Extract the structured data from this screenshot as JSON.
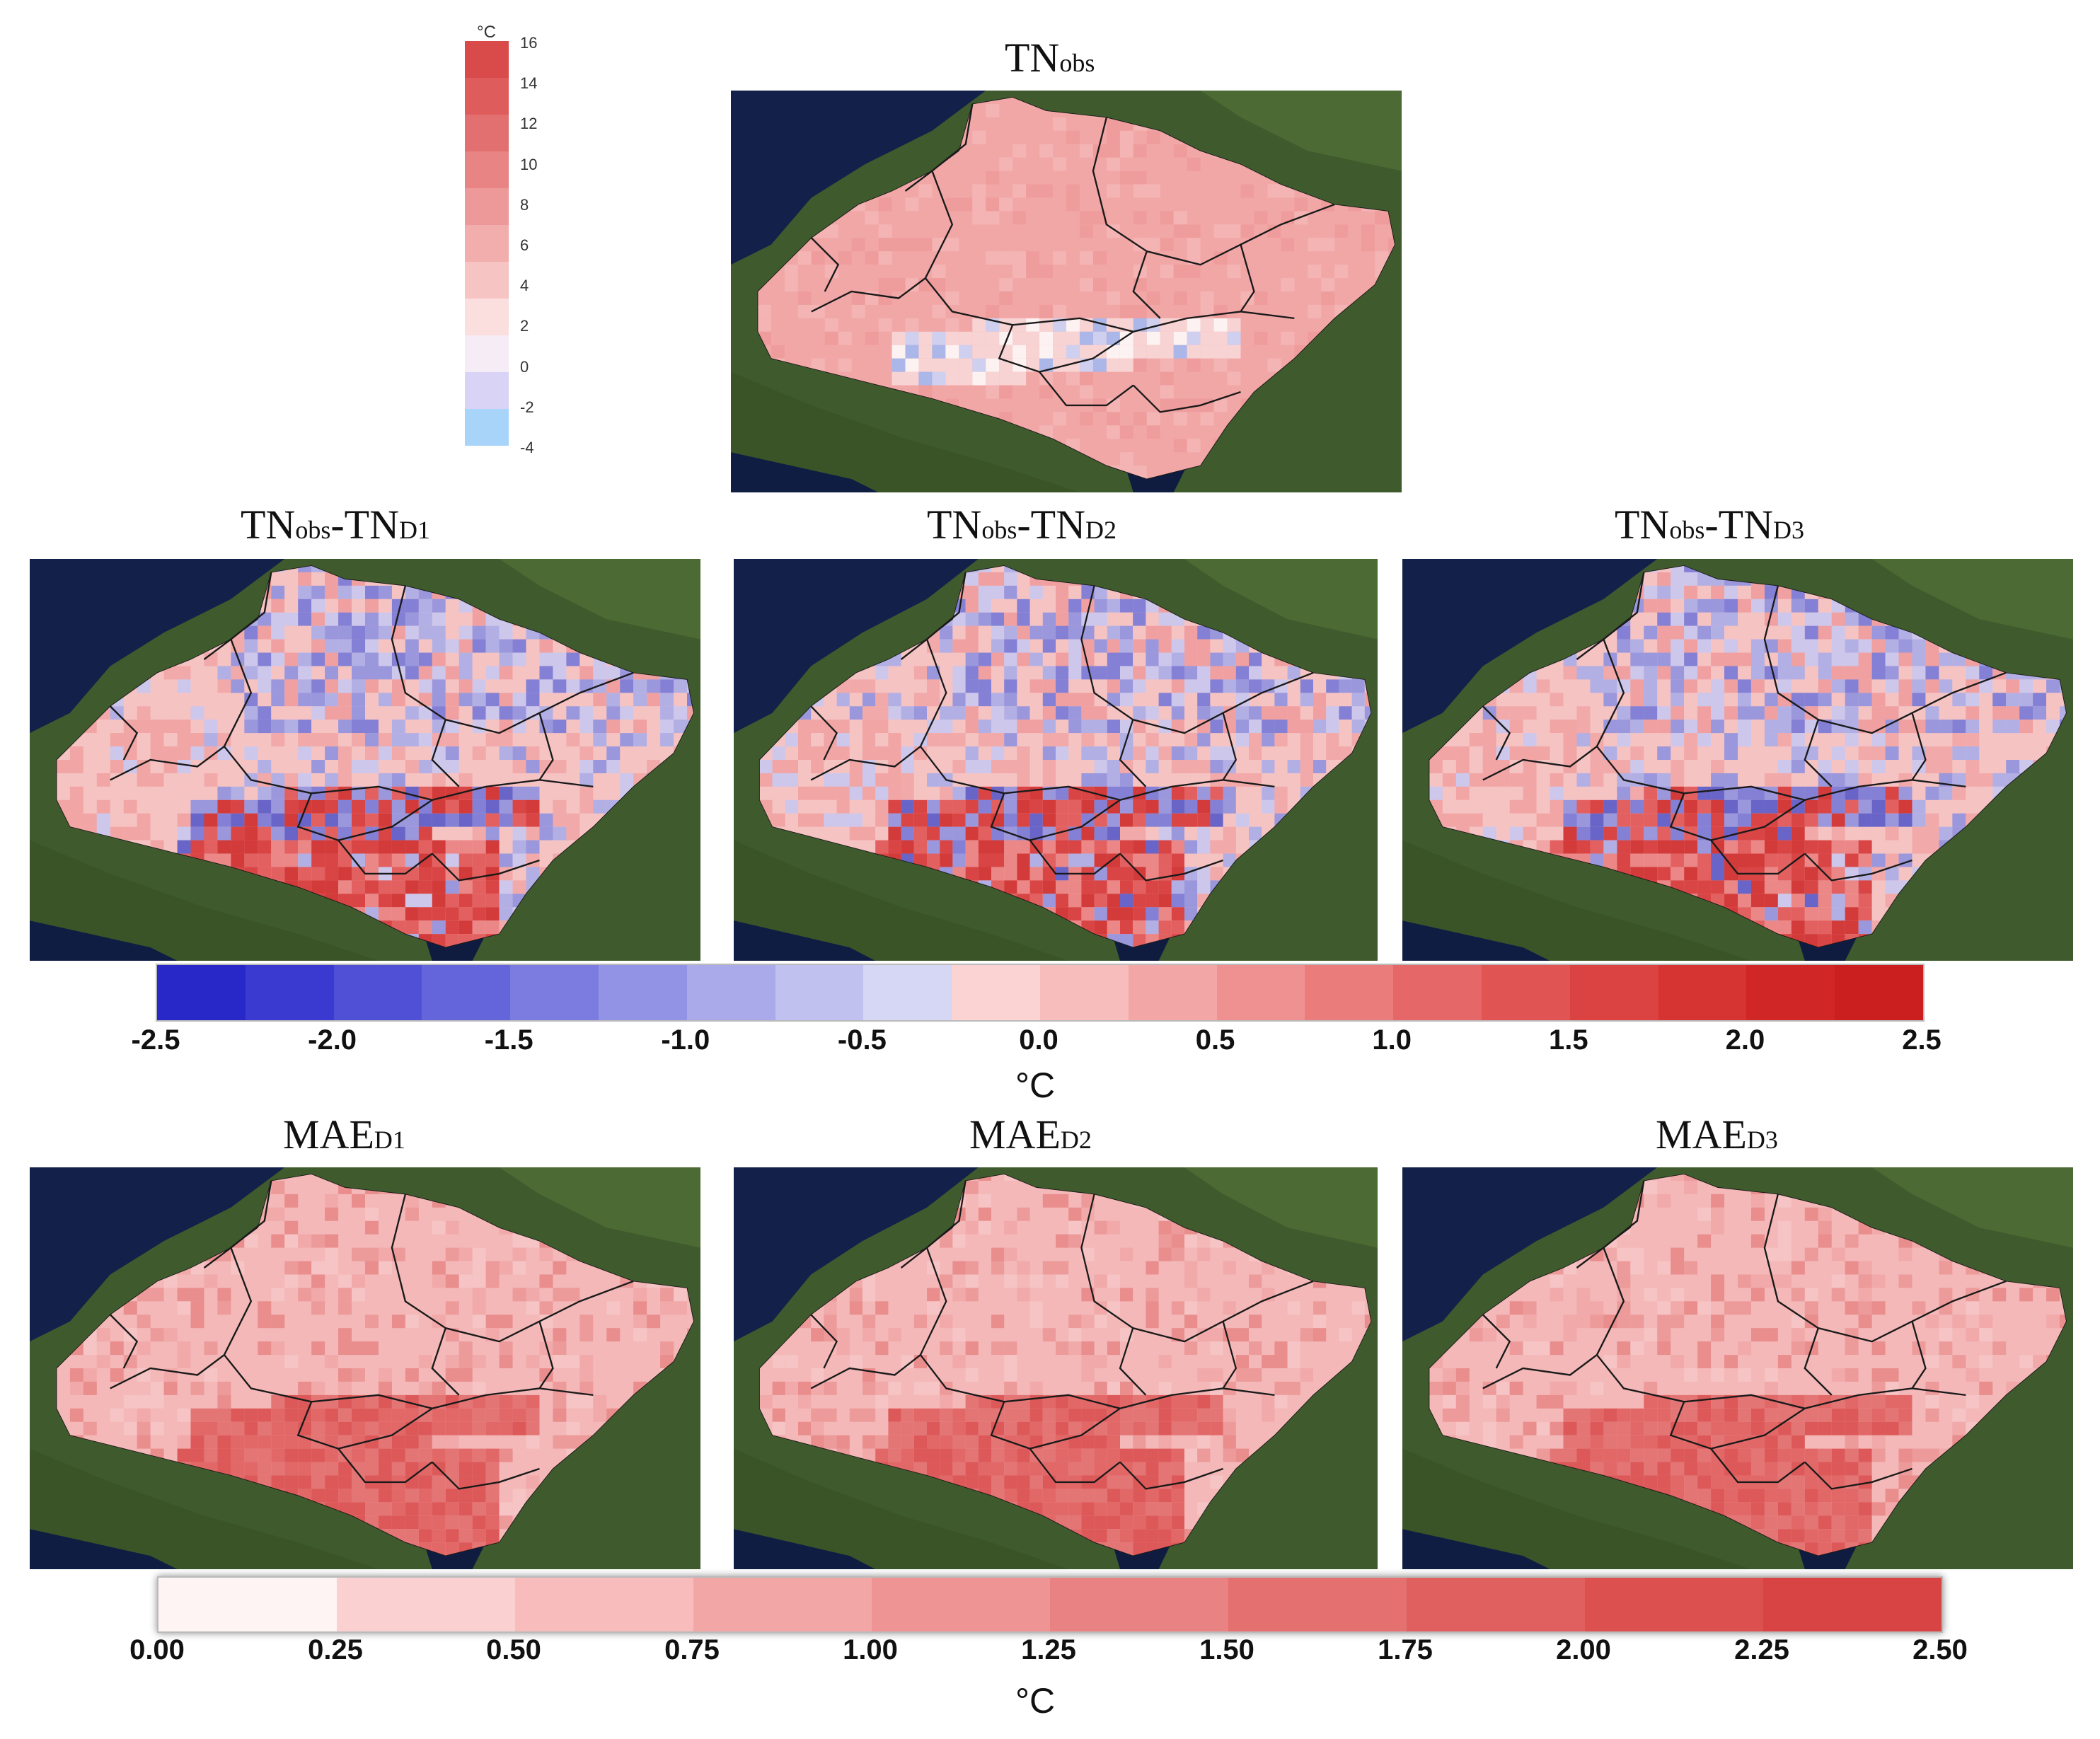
{
  "obs_legend": {
    "unit": "°C",
    "ticks": [
      "16",
      "14",
      "12",
      "10",
      "8",
      "6",
      "4",
      "2",
      "0",
      "-2",
      "-4"
    ],
    "colors": [
      "#d94a4a",
      "#de5c5c",
      "#e27070",
      "#e88484",
      "#ee9999",
      "#f2adad",
      "#f7c4c4",
      "#fbdede",
      "#f6ecf6",
      "#d9d3f5",
      "#a9d4fa"
    ]
  },
  "panels": {
    "obs": {
      "title": "TN",
      "sub": "obs",
      "style": "obs"
    },
    "b1": {
      "t1": "TN",
      "s1": "obs",
      "t2": "-TN",
      "s2": "D1",
      "style": "bias1"
    },
    "b2": {
      "t1": "TN",
      "s1": "obs",
      "t2": "-TN",
      "s2": "D2",
      "style": "bias2"
    },
    "b3": {
      "t1": "TN",
      "s1": "obs",
      "t2": "-TN",
      "s2": "D3",
      "style": "bias3"
    },
    "m1": {
      "title": "MAE",
      "sub": "D1",
      "style": "mae"
    },
    "m2": {
      "title": "MAE",
      "sub": "D2",
      "style": "mae"
    },
    "m3": {
      "title": "MAE",
      "sub": "D3",
      "style": "mae"
    }
  },
  "bias_colorbar": {
    "unit": "°C",
    "ticks": [
      "-2.5",
      "-2.0",
      "-1.5",
      "-1.0",
      "-0.5",
      "0.0",
      "0.5",
      "1.0",
      "1.5",
      "2.0",
      "2.5"
    ],
    "colors": [
      "#2828c8",
      "#3a3ad0",
      "#4f50d6",
      "#6565db",
      "#7b7be0",
      "#9393e6",
      "#aaaaeb",
      "#c1c1f0",
      "#d6d6f5",
      "#fbd3d3",
      "#f7bcbc",
      "#f3a6a6",
      "#ef9191",
      "#ea7c7c",
      "#e56767",
      "#e05454",
      "#db4242",
      "#d63333",
      "#d02626",
      "#cb1f1f"
    ]
  },
  "mae_colorbar": {
    "unit": "°C",
    "ticks": [
      "0.00",
      "0.25",
      "0.50",
      "0.75",
      "1.00",
      "1.25",
      "1.50",
      "1.75",
      "2.00",
      "2.25",
      "2.50"
    ],
    "colors": [
      "#fff4f4",
      "#fbd0d0",
      "#f8bcbc",
      "#f2a6a6",
      "#ee9494",
      "#e98282",
      "#e57070",
      "#e05f5f",
      "#dc5050",
      "#d84343"
    ]
  }
}
